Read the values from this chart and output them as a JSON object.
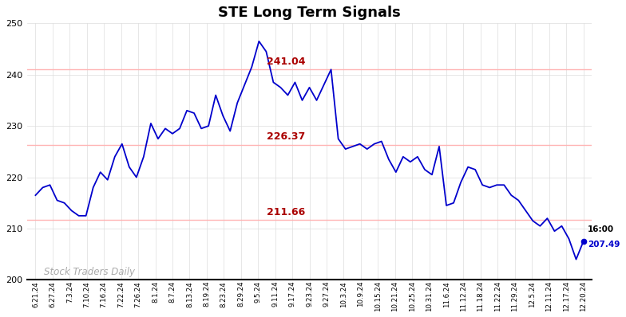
{
  "title": "STE Long Term Signals",
  "background_color": "#ffffff",
  "line_color": "#0000cc",
  "line_width": 1.3,
  "hline_color": "#ffb3b3",
  "hline_values": [
    241.04,
    226.37,
    211.66
  ],
  "hline_labels": [
    "241.04",
    "226.37",
    "211.66"
  ],
  "hline_label_color": "#aa0000",
  "ylim": [
    200,
    250
  ],
  "yticks": [
    200,
    210,
    220,
    230,
    240,
    250
  ],
  "watermark": "Stock Traders Daily",
  "watermark_color": "#aaaaaa",
  "last_label": "16:00",
  "last_value": "207.49",
  "last_dot_color": "#0000cc",
  "xtick_labels": [
    "6.21.24",
    "6.27.24",
    "7.3.24",
    "7.10.24",
    "7.16.24",
    "7.22.24",
    "7.26.24",
    "8.1.24",
    "8.7.24",
    "8.13.24",
    "8.19.24",
    "8.23.24",
    "8.29.24",
    "9.5.24",
    "9.11.24",
    "9.17.24",
    "9.23.24",
    "9.27.24",
    "10.3.24",
    "10.9.24",
    "10.15.24",
    "10.21.24",
    "10.25.24",
    "10.31.24",
    "11.6.24",
    "11.12.24",
    "11.18.24",
    "11.22.24",
    "11.29.24",
    "12.5.24",
    "12.11.24",
    "12.17.24",
    "12.20.24"
  ],
  "prices": [
    216.5,
    218.0,
    218.5,
    215.5,
    215.0,
    213.5,
    212.5,
    212.5,
    218.0,
    221.0,
    219.5,
    224.0,
    226.5,
    222.0,
    220.0,
    224.0,
    230.5,
    227.5,
    229.5,
    228.5,
    229.5,
    233.0,
    232.5,
    229.5,
    230.0,
    236.0,
    232.0,
    229.0,
    234.5,
    238.0,
    241.5,
    246.5,
    244.5,
    238.5,
    237.5,
    236.0,
    238.5,
    235.0,
    237.5,
    235.0,
    238.0,
    241.0,
    227.5,
    225.5,
    226.0,
    226.5,
    225.5,
    226.5,
    227.0,
    223.5,
    221.0,
    224.0,
    223.0,
    224.0,
    221.5,
    220.5,
    226.0,
    214.5,
    215.0,
    219.0,
    222.0,
    221.5,
    218.5,
    218.0,
    218.5,
    218.5,
    216.5,
    215.5,
    213.5,
    211.5,
    210.5,
    212.0,
    209.5,
    210.5,
    208.0,
    204.0,
    207.49
  ],
  "n_ticks": 33
}
